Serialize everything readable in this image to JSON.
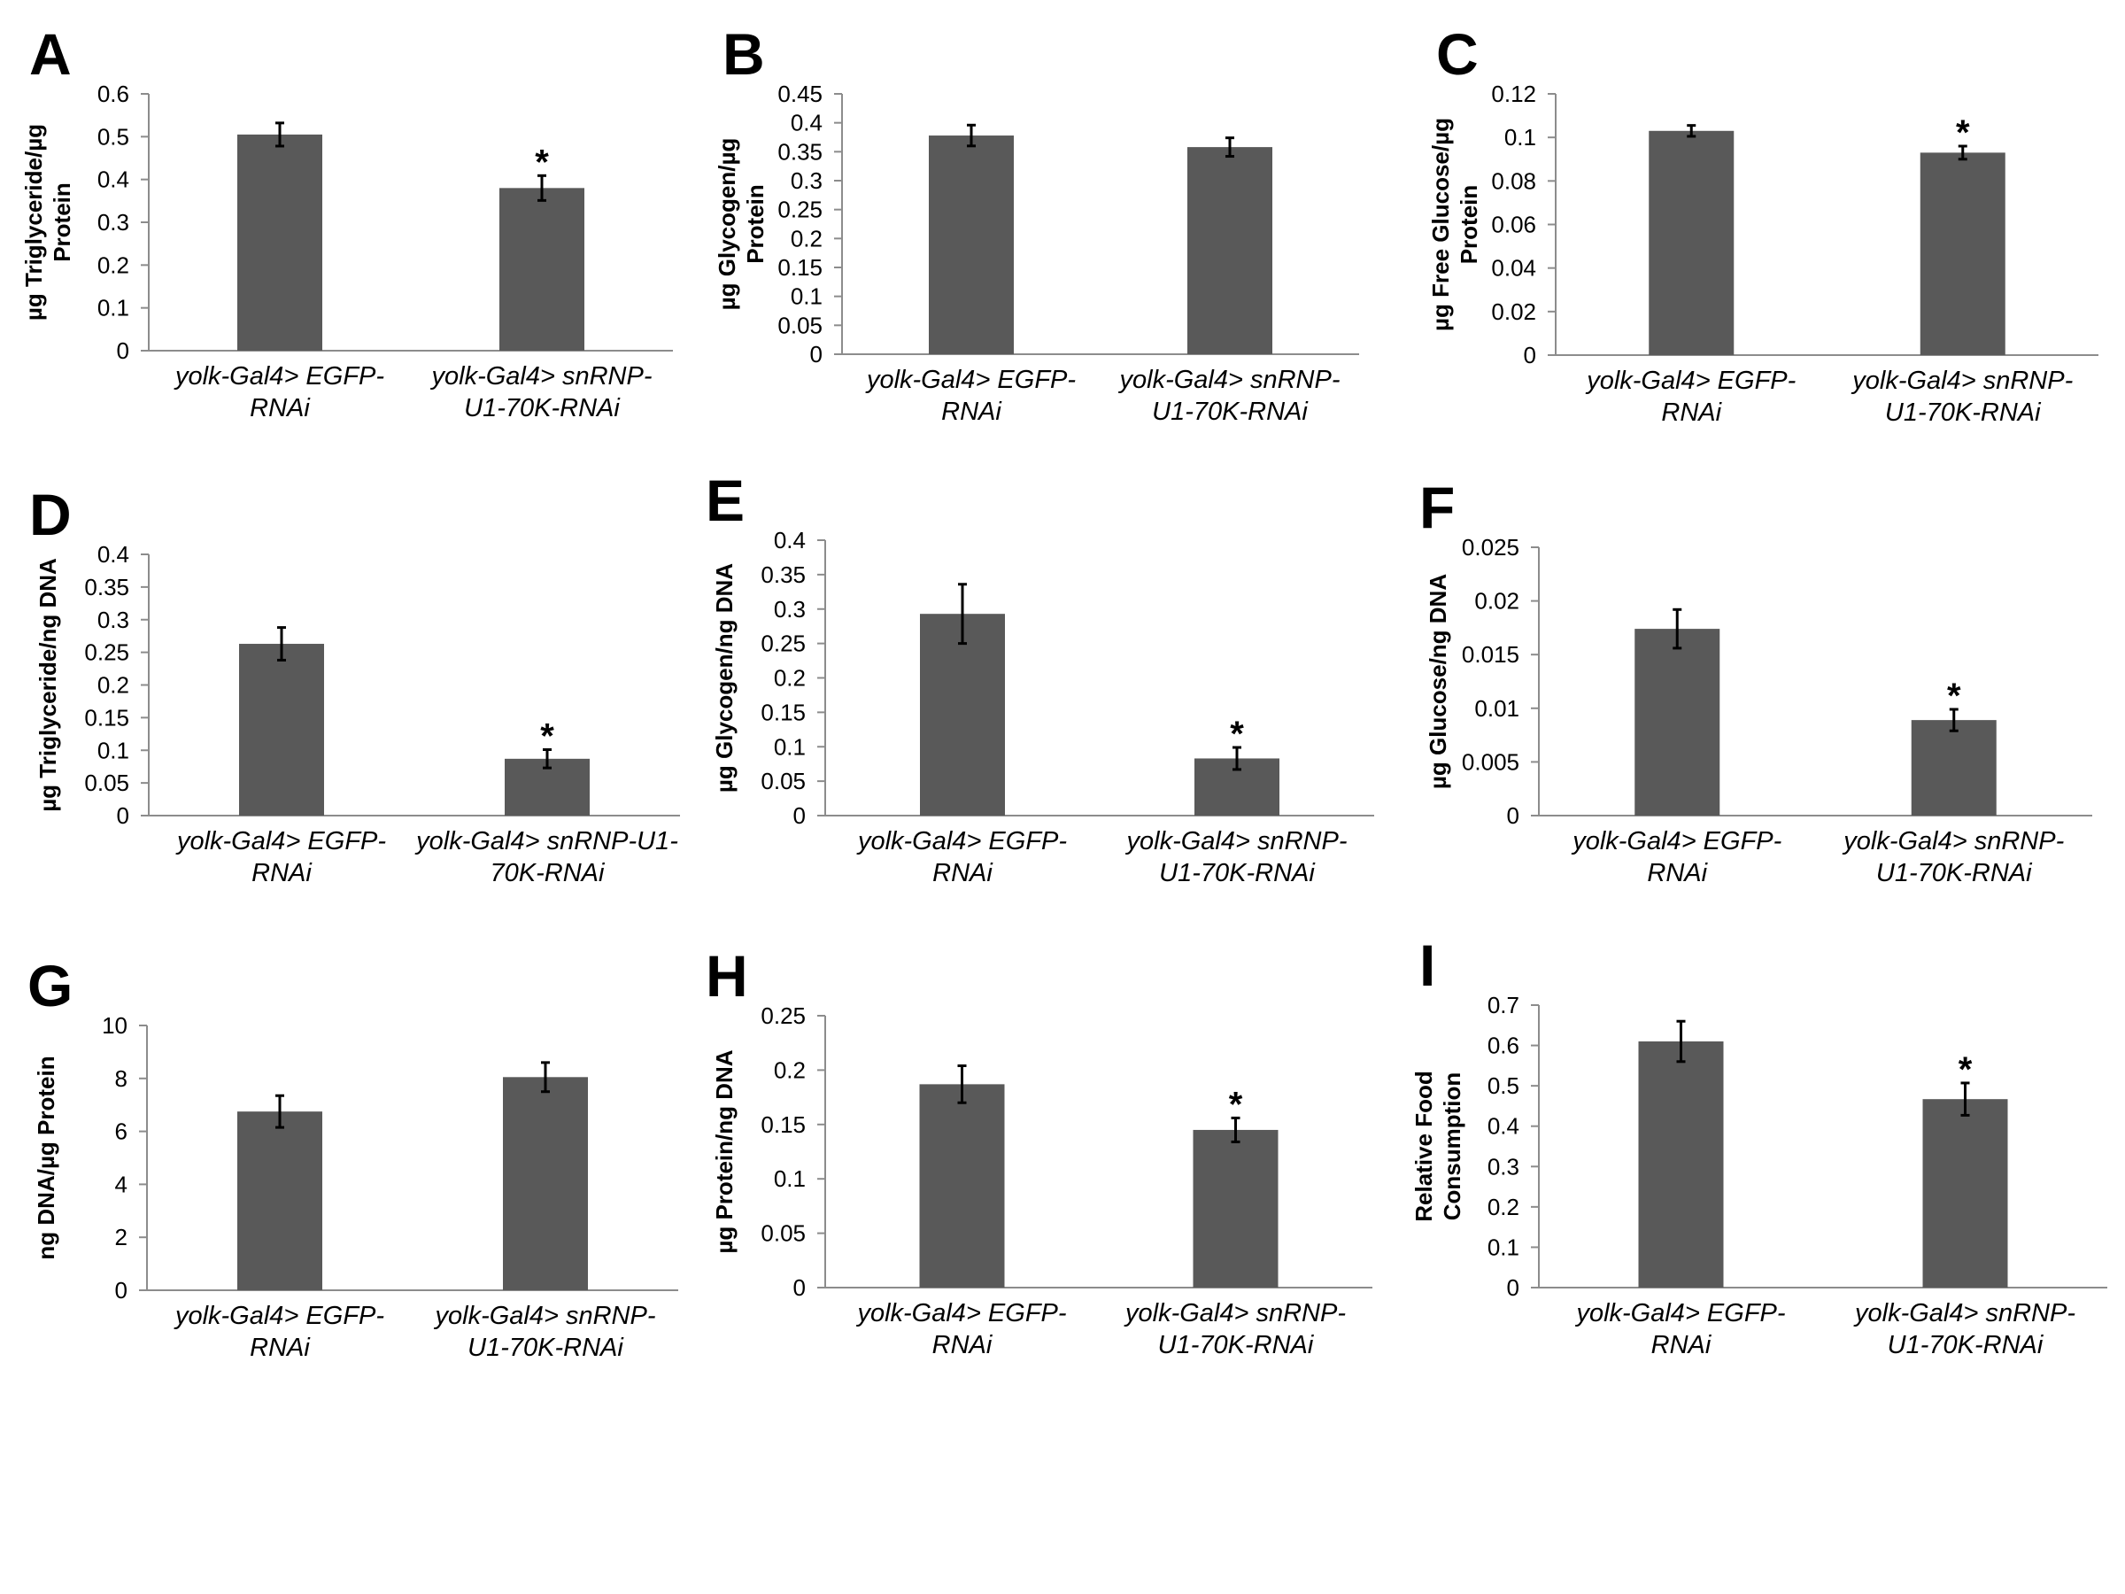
{
  "colors": {
    "bar": "#595959",
    "axis": "#8c8c8c",
    "text": "#000000"
  },
  "chart_data": [
    {
      "panel_label": "A",
      "type": "bar",
      "categories": [
        [
          "yolk-Gal4> EGFP-",
          "RNAi"
        ],
        [
          "yolk-Gal4> snRNP-",
          "U1-70K-RNAi"
        ]
      ],
      "values": [
        0.505,
        0.38
      ],
      "errors": [
        0.027,
        0.029
      ],
      "significant": [
        false,
        true
      ],
      "ylabel": [
        "µg Triglyceride/µg",
        "Protein"
      ],
      "ylim": [
        0,
        0.6
      ],
      "yticks": [
        "0",
        "0.1",
        "0.2",
        "0.3",
        "0.4",
        "0.5",
        "0.6"
      ],
      "significance_mark": "*"
    },
    {
      "panel_label": "B",
      "type": "bar",
      "categories": [
        [
          "yolk-Gal4> EGFP-",
          "RNAi"
        ],
        [
          "yolk-Gal4> snRNP-",
          "U1-70K-RNAi"
        ]
      ],
      "values": [
        0.378,
        0.358
      ],
      "errors": [
        0.018,
        0.016
      ],
      "significant": [
        false,
        false
      ],
      "ylabel": [
        "µg Glycogen/µg",
        "Protein"
      ],
      "ylim": [
        0,
        0.45
      ],
      "yticks": [
        "0",
        "0.05",
        "0.1",
        "0.15",
        "0.2",
        "0.25",
        "0.3",
        "0.35",
        "0.4",
        "0.45"
      ],
      "significance_mark": "*"
    },
    {
      "panel_label": "C",
      "type": "bar",
      "categories": [
        [
          "yolk-Gal4> EGFP-",
          "RNAi"
        ],
        [
          "yolk-Gal4> snRNP-",
          "U1-70K-RNAi"
        ]
      ],
      "values": [
        0.103,
        0.093
      ],
      "errors": [
        0.0025,
        0.003
      ],
      "significant": [
        false,
        true
      ],
      "ylabel": [
        "µg Free Glucose/µg",
        "Protein"
      ],
      "ylim": [
        0,
        0.12
      ],
      "yticks": [
        "0",
        "0.02",
        "0.04",
        "0.06",
        "0.08",
        "0.1",
        "0.12"
      ],
      "significance_mark": "*"
    },
    {
      "panel_label": "D",
      "type": "bar",
      "categories": [
        [
          "yolk-Gal4> EGFP-",
          "RNAi"
        ],
        [
          "yolk-Gal4> snRNP-U1-",
          "70K-RNAi"
        ]
      ],
      "values": [
        0.263,
        0.087
      ],
      "errors": [
        0.025,
        0.014
      ],
      "significant": [
        false,
        true
      ],
      "ylabel": [
        "µg Triglyceride/ng DNA"
      ],
      "ylim": [
        0,
        0.4
      ],
      "yticks": [
        "0",
        "0.05",
        "0.1",
        "0.15",
        "0.2",
        "0.25",
        "0.3",
        "0.35",
        "0.4"
      ],
      "significance_mark": "*"
    },
    {
      "panel_label": "E",
      "type": "bar",
      "categories": [
        [
          "yolk-Gal4> EGFP-",
          "RNAi"
        ],
        [
          "yolk-Gal4> snRNP-",
          "U1-70K-RNAi"
        ]
      ],
      "values": [
        0.293,
        0.083
      ],
      "errors": [
        0.043,
        0.016
      ],
      "significant": [
        false,
        true
      ],
      "ylabel": [
        "µg Glycogen/ng DNA"
      ],
      "ylim": [
        0,
        0.4
      ],
      "yticks": [
        "0",
        "0.05",
        "0.1",
        "0.15",
        "0.2",
        "0.25",
        "0.3",
        "0.35",
        "0.4"
      ],
      "significance_mark": "*"
    },
    {
      "panel_label": "F",
      "type": "bar",
      "categories": [
        [
          "yolk-Gal4> EGFP-",
          "RNAi"
        ],
        [
          "yolk-Gal4> snRNP-",
          "U1-70K-RNAi"
        ]
      ],
      "values": [
        0.0174,
        0.0089
      ],
      "errors": [
        0.0018,
        0.001
      ],
      "significant": [
        false,
        true
      ],
      "ylabel": [
        "µg Glucose/ng DNA"
      ],
      "ylim": [
        0,
        0.025
      ],
      "yticks": [
        "0",
        "0.005",
        "0.01",
        "0.015",
        "0.02",
        "0.025"
      ],
      "significance_mark": "*"
    },
    {
      "panel_label": "G",
      "type": "bar",
      "categories": [
        [
          "yolk-Gal4> EGFP-",
          "RNAi"
        ],
        [
          "yolk-Gal4> snRNP-",
          "U1-70K-RNAi"
        ]
      ],
      "values": [
        6.75,
        8.05
      ],
      "errors": [
        0.6,
        0.55
      ],
      "significant": [
        false,
        false
      ],
      "ylabel": [
        "ng DNA/µg Protein"
      ],
      "ylim": [
        0,
        10
      ],
      "yticks": [
        "0",
        "2",
        "4",
        "6",
        "8",
        "10"
      ],
      "significance_mark": "*"
    },
    {
      "panel_label": "H",
      "type": "bar",
      "categories": [
        [
          "yolk-Gal4> EGFP-",
          "RNAi"
        ],
        [
          "yolk-Gal4> snRNP-",
          "U1-70K-RNAi"
        ]
      ],
      "values": [
        0.187,
        0.145
      ],
      "errors": [
        0.017,
        0.011
      ],
      "significant": [
        false,
        true
      ],
      "ylabel": [
        "µg Protein/ng DNA"
      ],
      "ylim": [
        0,
        0.25
      ],
      "yticks": [
        "0",
        "0.05",
        "0.1",
        "0.15",
        "0.2",
        "0.25"
      ],
      "significance_mark": "*"
    },
    {
      "panel_label": "I",
      "type": "bar",
      "categories": [
        [
          "yolk-Gal4> EGFP-",
          "RNAi"
        ],
        [
          "yolk-Gal4> snRNP-",
          "U1-70K-RNAi"
        ]
      ],
      "values": [
        0.61,
        0.467
      ],
      "errors": [
        0.05,
        0.04
      ],
      "significant": [
        false,
        true
      ],
      "ylabel": [
        "Relative Food",
        "Consumption"
      ],
      "ylim": [
        0,
        0.7
      ],
      "yticks": [
        "0",
        "0.1",
        "0.2",
        "0.3",
        "0.4",
        "0.5",
        "0.6",
        "0.7"
      ],
      "significance_mark": "*"
    }
  ]
}
